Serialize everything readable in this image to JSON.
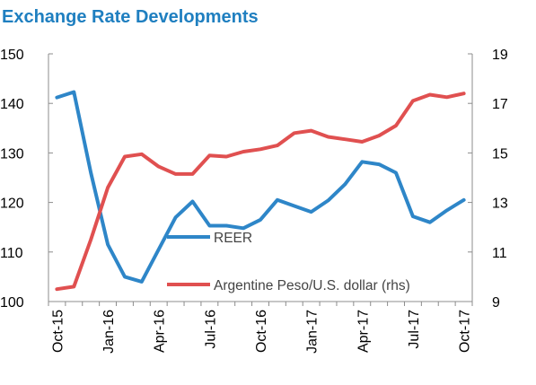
{
  "chart_data": {
    "type": "line",
    "title": "Exchange Rate Developments",
    "title_color": "#1f7fc0",
    "x": [
      "Oct-15",
      "Nov-15",
      "Dec-15",
      "Jan-16",
      "Feb-16",
      "Mar-16",
      "Apr-16",
      "May-16",
      "Jun-16",
      "Jul-16",
      "Aug-16",
      "Sep-16",
      "Oct-16",
      "Nov-16",
      "Dec-16",
      "Jan-17",
      "Feb-17",
      "Mar-17",
      "Apr-17",
      "May-17",
      "Jun-17",
      "Jul-17",
      "Aug-17",
      "Sep-17",
      "Oct-17"
    ],
    "x_tick_labels": [
      "Oct-15",
      "Jan-16",
      "Apr-16",
      "Jul-16",
      "Oct-16",
      "Jan-17",
      "Apr-17",
      "Jul-17",
      "Oct-17"
    ],
    "ylim_left": [
      100,
      150
    ],
    "yticks_left": [
      "100",
      "110",
      "120",
      "130",
      "140",
      "150"
    ],
    "ylim_right": [
      9,
      19
    ],
    "yticks_right": [
      "9",
      "11",
      "13",
      "15",
      "17",
      "19"
    ],
    "grid": false,
    "legend_position": "bottom-center",
    "series": [
      {
        "name": "REER",
        "axis": "left",
        "color": "#2e86c8",
        "values": [
          141.2,
          142.3,
          126.0,
          111.5,
          105.0,
          104.0,
          110.5,
          117.0,
          120.2,
          115.3,
          115.3,
          114.8,
          116.5,
          120.5,
          119.3,
          118.1,
          120.4,
          123.7,
          128.2,
          127.7,
          126.0,
          117.2,
          116.0,
          118.4,
          120.5
        ]
      },
      {
        "name": "Argentine Peso/U.S. dollar (rhs)",
        "axis": "right",
        "color": "#e05050",
        "values": [
          9.5,
          9.6,
          11.5,
          13.6,
          14.85,
          14.95,
          14.45,
          14.15,
          14.15,
          14.9,
          14.85,
          15.05,
          15.15,
          15.3,
          15.8,
          15.9,
          15.65,
          15.55,
          15.45,
          15.7,
          16.1,
          17.1,
          17.35,
          17.25,
          17.4
        ]
      }
    ]
  }
}
